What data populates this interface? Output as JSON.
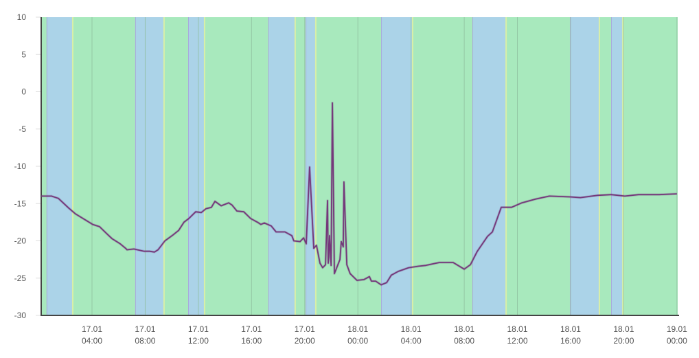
{
  "chart_data": {
    "type": "line",
    "title": "",
    "xlabel": "",
    "ylabel": "",
    "ylim": [
      -30,
      10
    ],
    "xlim": [
      "17.01 00:11",
      "19.01 00:00"
    ],
    "y_ticks": [
      "10",
      "5",
      "0",
      "-5",
      "-10",
      "-15",
      "-20",
      "-25",
      "-30"
    ],
    "x_ticks": [
      {
        "date": "17.01",
        "time": "04:00"
      },
      {
        "date": "17.01",
        "time": "08:00"
      },
      {
        "date": "17.01",
        "time": "12:00"
      },
      {
        "date": "17.01",
        "time": "16:00"
      },
      {
        "date": "17.01",
        "time": "20:00"
      },
      {
        "date": "18.01",
        "time": "00:00"
      },
      {
        "date": "18.01",
        "time": "04:00"
      },
      {
        "date": "18.01",
        "time": "08:00"
      },
      {
        "date": "18.01",
        "time": "12:00"
      },
      {
        "date": "18.01",
        "time": "16:00"
      },
      {
        "date": "18.01",
        "time": "20:00"
      },
      {
        "date": "19.01",
        "time": "00:00"
      }
    ],
    "grid": "vertical",
    "colors": {
      "line": "#74387a",
      "band_blue": "#abd3e8",
      "band_green": "#a8e9bd",
      "band_edge": "#d9efa8",
      "axis": "#444444"
    },
    "bands_blue": [
      [
        "17.01 00:35",
        "17.01 02:30"
      ],
      [
        "17.01 07:15",
        "17.01 09:22"
      ],
      [
        "17.01 11:14",
        "17.01 12:25"
      ],
      [
        "17.01 17:16",
        "17.01 19:14"
      ],
      [
        "17.01 20:04",
        "17.01 20:47"
      ],
      [
        "18.01 01:45",
        "18.01 04:04"
      ],
      [
        "18.01 08:37",
        "18.01 11:06"
      ],
      [
        "18.01 15:57",
        "18.01 18:07"
      ],
      [
        "18.01 19:03",
        "18.01 19:53"
      ]
    ],
    "series": [
      {
        "x": [
          "17.01 00:11",
          "17.01 00:57",
          "17.01 01:28",
          "17.01 02:15",
          "17.01 02:46",
          "17.01 04:03",
          "17.01 04:34",
          "17.01 05:05",
          "17.01 05:30",
          "17.01 06:07",
          "17.01 06:32",
          "17.01 06:38",
          "17.01 07:09",
          "17.01 07:56",
          "17.01 08:20",
          "17.01 08:42",
          "17.01 08:58",
          "17.01 09:29",
          "17.01 10:06",
          "17.01 10:31",
          "17.01 10:55",
          "17.01 11:17",
          "17.01 11:48",
          "17.01 12:13",
          "17.01 12:34",
          "17.01 12:59",
          "17.01 13:15",
          "17.01 13:43",
          "17.01 14:17",
          "17.01 14:32",
          "17.01 14:54",
          "17.01 15:25",
          "17.01 15:56",
          "17.01 16:27",
          "17.01 16:42",
          "17.01 16:58",
          "17.01 17:29",
          "17.01 17:51",
          "17.01 18:31",
          "17.01 19:02",
          "17.01 19:11",
          "17.01 19:39",
          "17.01 19:55",
          "17.01 20:07",
          "17.01 20:22",
          "17.01 20:41",
          "17.01 20:53",
          "17.01 21:09",
          "17.01 21:21",
          "17.01 21:34",
          "17.01 21:43",
          "17.01 21:46",
          "17.01 21:49",
          "17.01 21:52",
          "17.01 21:59",
          "17.01 22:05",
          "17.01 22:14",
          "17.01 22:39",
          "17.01 22:45",
          "17.01 22:54",
          "17.01 22:57",
          "17.01 23:10",
          "17.01 23:25",
          "17.01 23:56",
          "18.01 00:27",
          "18.01 00:52",
          "18.01 01:01",
          "18.01 01:20",
          "18.01 01:45",
          "18.01 02:10",
          "18.01 02:31",
          "18.01 03:02",
          "18.01 03:49",
          "18.01 04:35",
          "18.01 05:06",
          "18.01 06:08",
          "18.01 07:10",
          "18.01 08:00",
          "18.01 08:28",
          "18.01 08:59",
          "18.01 09:45",
          "18.01 10:07",
          "18.01 10:47",
          "18.01 11:34",
          "18.01 12:20",
          "18.01 13:22",
          "18.01 14:24",
          "18.01 15:57",
          "18.01 16:44",
          "18.01 18:01",
          "18.01 19:03",
          "18.01 20:05",
          "18.01 21:07",
          "18.01 22:40",
          "19.01 00:00"
        ],
        "y": [
          -14.0,
          -14.0,
          -14.3,
          -15.6,
          -16.4,
          -17.8,
          -18.1,
          -19.0,
          -19.7,
          -20.4,
          -21.0,
          -21.2,
          -21.1,
          -21.4,
          -21.4,
          -21.5,
          -21.2,
          -20.0,
          -19.2,
          -18.6,
          -17.5,
          -17.0,
          -16.1,
          -16.2,
          -15.7,
          -15.5,
          -14.7,
          -15.3,
          -14.9,
          -15.2,
          -16.0,
          -16.1,
          -17.0,
          -17.5,
          -17.8,
          -17.6,
          -18.0,
          -18.8,
          -18.8,
          -19.3,
          -20.0,
          -20.1,
          -19.6,
          -20.4,
          -10.1,
          -21.0,
          -20.6,
          -23.0,
          -23.6,
          -23.2,
          -14.6,
          -23.0,
          -22.2,
          -19.3,
          -23.3,
          -1.5,
          -24.4,
          -22.5,
          -20.1,
          -20.8,
          -12.1,
          -23.2,
          -24.4,
          -25.3,
          -25.2,
          -24.8,
          -25.4,
          -25.4,
          -25.9,
          -25.6,
          -24.6,
          -24.1,
          -23.6,
          -23.4,
          -23.3,
          -22.9,
          -22.9,
          -23.8,
          -23.2,
          -21.4,
          -19.4,
          -18.8,
          -15.5,
          -15.5,
          -14.9,
          -14.4,
          -14.0,
          -14.1,
          -14.2,
          -13.9,
          -13.8,
          -14.0,
          -13.8,
          -13.8,
          -13.7
        ]
      }
    ]
  }
}
